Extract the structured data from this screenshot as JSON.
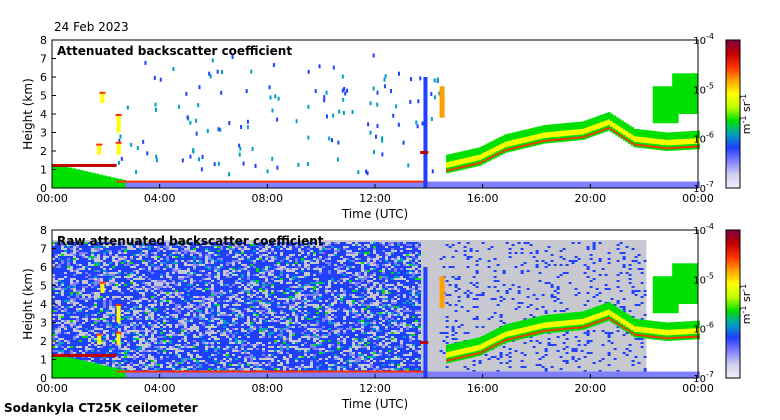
{
  "date_label": "24 Feb 2023",
  "footer": "Sodankyla CT25K ceilometer",
  "colors": {
    "colormap": [
      "#f0f0f8",
      "#d0d0f0",
      "#8080ff",
      "#2040ff",
      "#00a0c0",
      "#00e000",
      "#c0ff00",
      "#ffff00",
      "#ffa000",
      "#ff3000",
      "#c00000",
      "#800040"
    ],
    "background_gray": "#c8c8d0"
  },
  "chart_data": [
    {
      "type": "heatmap",
      "title": "Attenuated backscatter coefficient",
      "xlabel": "Time (UTC)",
      "ylabel": "Height (km)",
      "x_ticks": [
        "00:00",
        "04:00",
        "08:00",
        "12:00",
        "16:00",
        "20:00",
        "00:00"
      ],
      "y_ticks": [
        "0",
        "1",
        "2",
        "3",
        "4",
        "5",
        "6",
        "7",
        "8"
      ],
      "ylim": [
        0,
        8
      ],
      "colorbar": {
        "scale": "log",
        "ticks": [
          {
            "base": "10",
            "exp": "-7"
          },
          {
            "base": "10",
            "exp": "-6"
          },
          {
            "base": "10",
            "exp": "-5"
          },
          {
            "base": "10",
            "exp": "-4"
          }
        ],
        "unit": {
          "m": "m",
          "m_exp": "-1",
          "sr": "sr",
          "sr_exp": "-1"
        }
      }
    },
    {
      "type": "heatmap",
      "title": "Raw attenuated backscatter coefficient",
      "xlabel": "Time (UTC)",
      "ylabel": "Height (km)",
      "x_ticks": [
        "00:00",
        "04:00",
        "08:00",
        "12:00",
        "16:00",
        "20:00",
        "00:00"
      ],
      "y_ticks": [
        "0",
        "1",
        "2",
        "3",
        "4",
        "5",
        "6",
        "7",
        "8"
      ],
      "ylim": [
        0,
        8
      ],
      "colorbar": {
        "scale": "log",
        "ticks": [
          {
            "base": "10",
            "exp": "-7"
          },
          {
            "base": "10",
            "exp": "-6"
          },
          {
            "base": "10",
            "exp": "-5"
          },
          {
            "base": "10",
            "exp": "-4"
          }
        ],
        "unit": {
          "m": "m",
          "m_exp": "-1",
          "sr": "sr",
          "sr_exp": "-1"
        }
      }
    }
  ]
}
